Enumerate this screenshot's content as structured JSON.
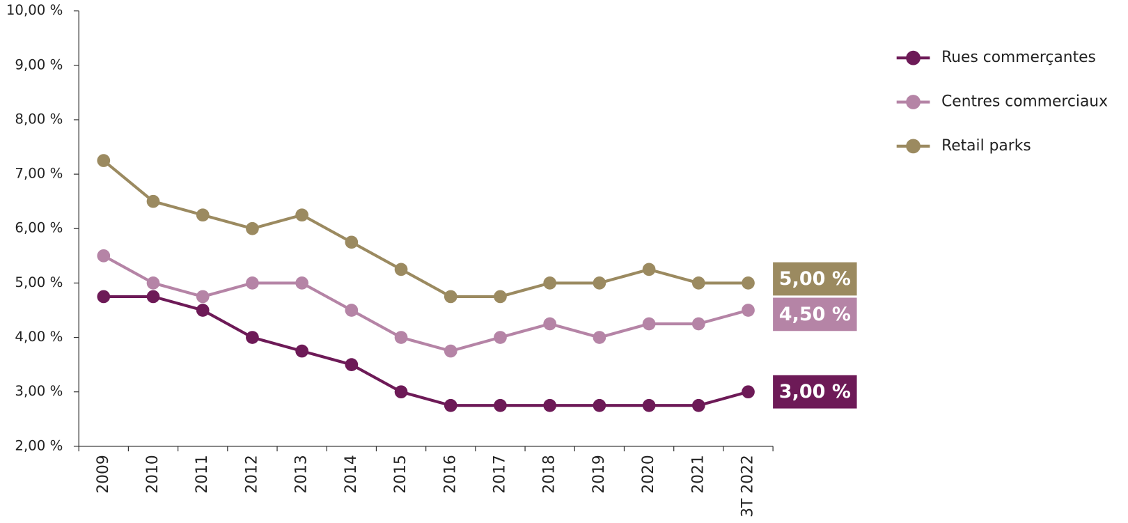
{
  "chart_data": {
    "type": "line",
    "categories": [
      "2009",
      "2010",
      "2011",
      "2012",
      "2013",
      "2014",
      "2015",
      "2016",
      "2017",
      "2018",
      "2019",
      "2020",
      "2021",
      "3T 2022"
    ],
    "series": [
      {
        "name": "Rues commerçantes",
        "color": "#6d1a57",
        "values": [
          4.75,
          4.75,
          4.5,
          4.0,
          3.75,
          3.5,
          3.0,
          2.75,
          2.75,
          2.75,
          2.75,
          2.75,
          2.75,
          3.0
        ],
        "value_labels": [
          null,
          null,
          null,
          null,
          null,
          null,
          null,
          null,
          null,
          null,
          null,
          null,
          null,
          "3,00 %"
        ]
      },
      {
        "name": "Centres commerciaux",
        "color": "#b584a6",
        "values": [
          5.5,
          5.0,
          4.75,
          5.0,
          5.0,
          4.5,
          4.0,
          3.75,
          4.0,
          4.25,
          4.0,
          4.25,
          4.25,
          4.5
        ],
        "value_labels": [
          null,
          null,
          null,
          null,
          null,
          null,
          null,
          null,
          null,
          null,
          null,
          null,
          null,
          "4,50 %"
        ]
      },
      {
        "name": "Retail parks",
        "color": "#9b8a60",
        "values": [
          7.25,
          6.5,
          6.25,
          6.0,
          6.25,
          5.75,
          5.25,
          4.75,
          4.75,
          5.0,
          5.0,
          5.25,
          5.0,
          5.0
        ],
        "value_labels": [
          null,
          null,
          null,
          null,
          null,
          null,
          null,
          null,
          null,
          null,
          null,
          null,
          null,
          "5,00 %"
        ]
      }
    ],
    "ylim": [
      2,
      10
    ],
    "yticks": [
      {
        "value": 2,
        "label": "2,00 %"
      },
      {
        "value": 3,
        "label": "3,00 %"
      },
      {
        "value": 4,
        "label": "4,00 %"
      },
      {
        "value": 5,
        "label": "5,00 %"
      },
      {
        "value": 6,
        "label": "6,00 %"
      },
      {
        "value": 7,
        "label": "7,00 %"
      },
      {
        "value": 8,
        "label": "8,00 %"
      },
      {
        "value": 9,
        "label": "9,00 %"
      },
      {
        "value": 10,
        "label": "10,00 %"
      }
    ],
    "grid": false,
    "legend": "right"
  }
}
